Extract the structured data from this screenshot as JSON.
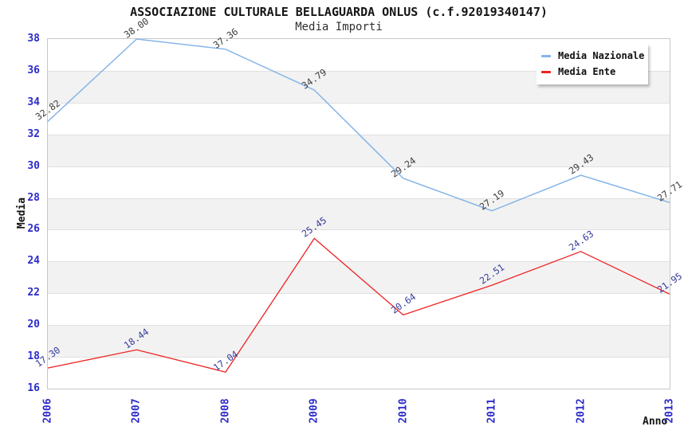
{
  "chart_data": {
    "type": "line",
    "title": "ASSOCIAZIONE CULTURALE BELLAGUARDA ONLUS (c.f.92019340147)",
    "subtitle": "Media Importi",
    "xlabel": "Anno",
    "ylabel": "Media",
    "x": [
      "2006",
      "2007",
      "2008",
      "2009",
      "2010",
      "2011",
      "2012",
      "2013"
    ],
    "series": [
      {
        "name": "Media Nazionale",
        "color": "#85B5E8",
        "label_color": "#3C3C3C",
        "values": [
          32.82,
          38.0,
          37.36,
          34.79,
          29.24,
          27.19,
          29.43,
          27.71
        ]
      },
      {
        "name": "Media Ente",
        "color": "#EE2222",
        "label_color": "#343B99",
        "values": [
          17.3,
          18.44,
          17.04,
          25.45,
          20.64,
          22.51,
          24.63,
          21.95
        ]
      }
    ],
    "ylim": [
      16,
      38
    ],
    "ytick_step": 2,
    "yticks": [
      16,
      18,
      20,
      22,
      24,
      26,
      28,
      30,
      32,
      34,
      36,
      38
    ],
    "grid": "horizontal-bands",
    "legend_position": "top-right",
    "value_labels": "shown-rotated-two-decimals"
  },
  "colors": {
    "tick_label": "#2B2BCB",
    "band_fill": "#F2F2F2",
    "gridline": "#E0E0E0",
    "plot_border": "#C8C8C8",
    "background": "#FFFFFF"
  }
}
